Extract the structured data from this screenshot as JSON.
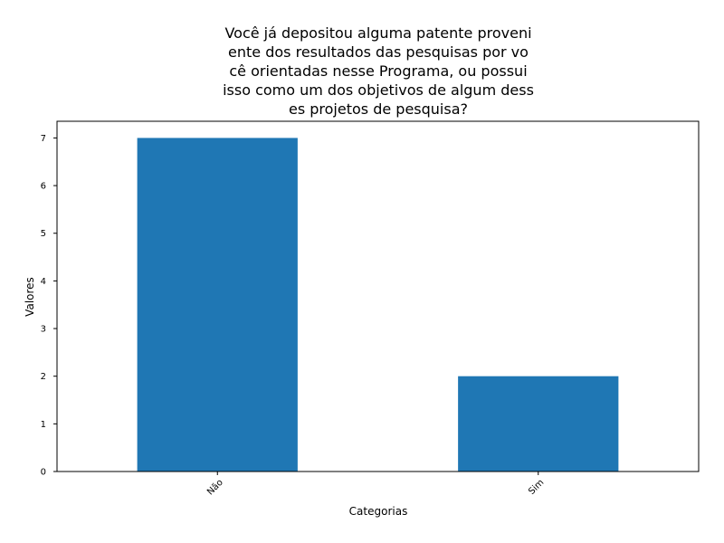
{
  "chart_data": {
    "type": "bar",
    "title_lines": [
      "Você já depositou alguma patente proveni",
      "ente dos resultados das pesquisas por vo",
      "cê orientadas nesse Programa, ou possui",
      "isso como um dos objetivos de algum dess",
      "es projetos de pesquisa?"
    ],
    "categories": [
      "Não",
      "Sim"
    ],
    "values": [
      7,
      2
    ],
    "xlabel": "Categorias",
    "ylabel": "Valores",
    "ylim": [
      0,
      7.35
    ],
    "yticks": [
      "0",
      "1",
      "2",
      "3",
      "4",
      "5",
      "6",
      "7"
    ],
    "bar_color": "#1f77b4",
    "grid": false,
    "legend": "none"
  }
}
